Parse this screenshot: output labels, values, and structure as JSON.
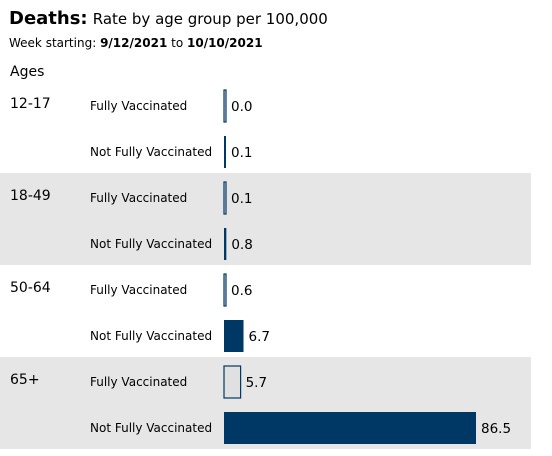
{
  "header": {
    "title_bold": "Deaths:",
    "title_rest": "Rate by age group per 100,000",
    "week_prefix": "Week starting:",
    "start_date": "9/12/2021",
    "to_word": "to",
    "end_date": "10/10/2021",
    "ages_label": "Ages"
  },
  "colors": {
    "not_fully_vaccinated": "#003865",
    "fully_vaccinated_fill": "#e0e0e0",
    "fully_vaccinated_stroke": "#003865",
    "band_shade": "#e6e6e6"
  },
  "chart_data": {
    "type": "bar",
    "orientation": "horizontal",
    "categories": [
      "12-17",
      "18-49",
      "50-64",
      "65+"
    ],
    "series": [
      {
        "name": "Fully Vaccinated",
        "values": [
          0.0,
          0.1,
          0.6,
          5.7
        ]
      },
      {
        "name": "Not Fully Vaccinated",
        "values": [
          0.1,
          0.8,
          6.7,
          86.5
        ]
      }
    ],
    "value_labels": {
      "Fully Vaccinated": [
        "0.0",
        "0.1",
        "0.6",
        "5.7"
      ],
      "Not Fully Vaccinated": [
        "0.1",
        "0.8",
        "6.7",
        "86.5"
      ]
    },
    "title": "Deaths: Rate by age group per 100,000",
    "xlabel": "",
    "ylabel": "Ages",
    "grid": false,
    "legend": "none"
  }
}
